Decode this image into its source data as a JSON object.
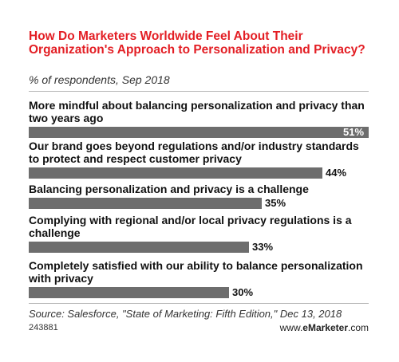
{
  "header": {
    "title": "How Do Marketers Worldwide Feel About Their Organization's Approach to Personalization and Privacy?",
    "subtitle": "% of respondents, Sep 2018"
  },
  "chart_data": {
    "type": "bar",
    "orientation": "horizontal",
    "categories": [
      "More mindful about balancing personalization and privacy than two years ago",
      "Our brand goes beyond regulations and/or industry standards to protect and respect customer privacy",
      "Balancing personalization and privacy is a challenge",
      "Complying with regional and/or local privacy regulations is a challenge",
      "Completely satisfied with our ability to balance personalization with privacy"
    ],
    "values": [
      51,
      44,
      35,
      33,
      30
    ],
    "value_labels": [
      "51%",
      "44%",
      "35%",
      "33%",
      "30%"
    ],
    "xlim": [
      0,
      51
    ],
    "bar_color": "#6d6d6d",
    "grid": false,
    "legend": "none"
  },
  "footer": {
    "source": "Source: Salesforce, \"State of Marketing: Fifth Edition,\" Dec 13, 2018",
    "id": "243881",
    "brand_prefix": "www.",
    "brand_name": "eMarketer",
    "brand_suffix": ".com"
  },
  "colors": {
    "title": "#e31e24",
    "bar": "#6d6d6d"
  }
}
